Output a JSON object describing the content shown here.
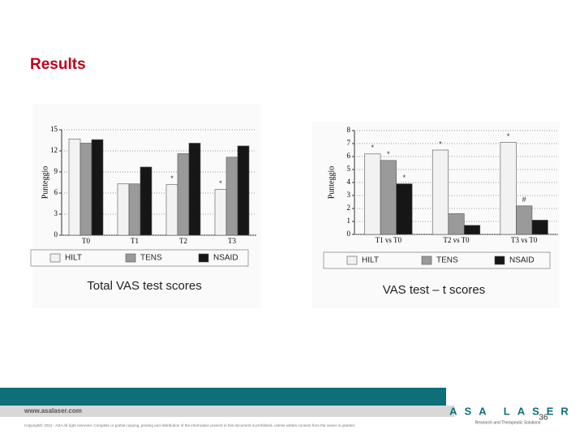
{
  "title": "Results",
  "chart_data": [
    {
      "type": "bar",
      "y_label": "Punteggio",
      "categories": [
        "T0",
        "T1",
        "T2",
        "T3"
      ],
      "series": [
        {
          "name": "HILT",
          "color": "#f2f2f2",
          "values": [
            13.7,
            7.3,
            7.2,
            6.5
          ]
        },
        {
          "name": "TENS",
          "color": "#9a9a9a",
          "values": [
            13.1,
            7.3,
            11.6,
            11.1
          ]
        },
        {
          "name": "NSAID",
          "color": "#161616",
          "values": [
            13.6,
            9.7,
            13.1,
            12.7
          ]
        }
      ],
      "ylim": [
        0,
        15
      ],
      "yticks": [
        0,
        3,
        6,
        9,
        12,
        15
      ],
      "grid": true,
      "annotations": [
        {
          "text": "*",
          "series": "HILT",
          "category": "T2"
        },
        {
          "text": "*",
          "series": "HILT",
          "category": "T3"
        }
      ],
      "caption": "Total VAS test scores"
    },
    {
      "type": "bar",
      "y_label": "Punteggio",
      "categories": [
        "T1 vs T0",
        "T2 vs T0",
        "T3 vs T0"
      ],
      "series": [
        {
          "name": "HILT",
          "color": "#f2f2f2",
          "values": [
            6.2,
            6.5,
            7.1
          ]
        },
        {
          "name": "TENS",
          "color": "#9a9a9a",
          "values": [
            5.7,
            1.6,
            2.2
          ]
        },
        {
          "name": "NSAID",
          "color": "#161616",
          "values": [
            3.9,
            0.7,
            1.1
          ]
        }
      ],
      "ylim": [
        0,
        8
      ],
      "yticks": [
        0,
        1,
        2,
        3,
        4,
        5,
        6,
        7,
        8
      ],
      "grid": true,
      "annotations": [
        {
          "text": "*",
          "series": "HILT",
          "category": "T1 vs T0"
        },
        {
          "text": "*",
          "series": "TENS",
          "category": "T1 vs T0"
        },
        {
          "text": "*",
          "series": "NSAID",
          "category": "T1 vs T0"
        },
        {
          "text": "*",
          "series": "HILT",
          "category": "T2 vs T0"
        },
        {
          "text": "*",
          "series": "HILT",
          "category": "T3 vs T0"
        },
        {
          "text": "#",
          "series": "TENS",
          "category": "T3 vs T0"
        }
      ],
      "caption": "VAS test – t scores"
    }
  ],
  "footer": {
    "website": "www.asalaser.com",
    "copyright": "Copyright© 2012 - ASA  All right reserved. Complete or partial copying, printing and distribution of the information present in this document is prohibited, unless written consent from the owner is granted.",
    "logo": "ASA LASER",
    "tagline": "Research and Therapeutic Solutions"
  },
  "page_number": "36"
}
